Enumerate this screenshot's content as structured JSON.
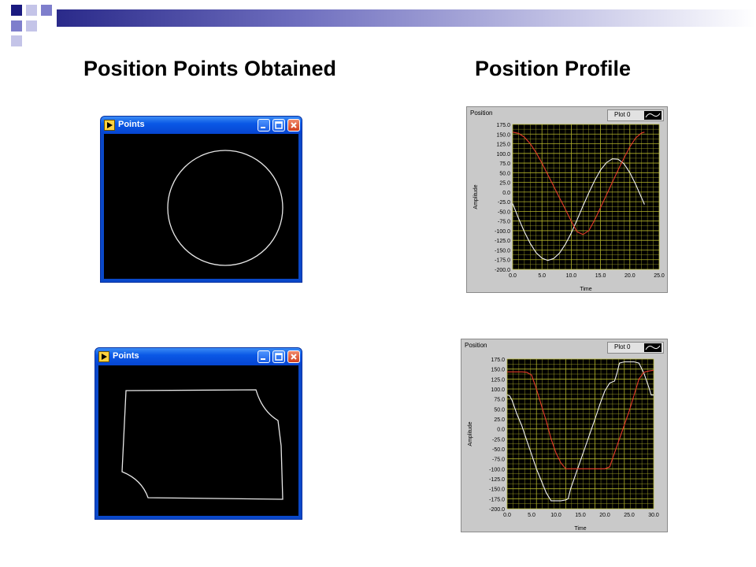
{
  "slide": {
    "heading_left": "Position Points Obtained",
    "heading_right": "Position Profile"
  },
  "windows": [
    {
      "title": "Points",
      "shape": "circle"
    },
    {
      "title": "Points",
      "shape": "square"
    }
  ],
  "colors": {
    "accent_dark": "#1a1a80",
    "accent_mid": "#7e7ecc",
    "accent_light": "#c4c4e8",
    "trace_white": "#f2f2f2",
    "trace_red": "#e63a2a",
    "grid": "#b5b52c"
  },
  "chart_data": [
    {
      "type": "line",
      "title": "Position",
      "xlabel": "Time",
      "ylabel": "Amplitude",
      "legend": "Plot 0",
      "legend_position": "top-right",
      "grid": true,
      "xlim": [
        0,
        25
      ],
      "ylim": [
        -200,
        175
      ],
      "xticks": [
        "0.0",
        "5.0",
        "10.0",
        "15.0",
        "20.0",
        "25.0"
      ],
      "yticks": [
        "175.0",
        "150.0",
        "125.0",
        "100.0",
        "75.0",
        "50.0",
        "25.0",
        "0.0",
        "-25.0",
        "-50.0",
        "-75.0",
        "-100.0",
        "-125.0",
        "-150.0",
        "-175.0",
        "-200.0"
      ],
      "series": [
        {
          "color": "#f2f2f2",
          "x": [
            0,
            1,
            2,
            3,
            4,
            5,
            6,
            7,
            8,
            9,
            10,
            11,
            12,
            13,
            14,
            15,
            16,
            17,
            18,
            19,
            20,
            21,
            22,
            22.5
          ],
          "values": [
            -30,
            -68,
            -103,
            -133,
            -157,
            -171,
            -177,
            -172,
            -158,
            -135,
            -106,
            -72,
            -36,
            -2,
            30,
            57,
            76,
            86,
            85,
            73,
            50,
            20,
            -15,
            -32
          ]
        },
        {
          "color": "#e63a2a",
          "x": [
            0,
            1,
            2,
            3,
            4,
            5,
            6,
            7,
            8,
            9,
            10,
            11,
            12,
            13,
            14,
            15,
            16,
            17,
            18,
            19,
            20,
            21,
            22,
            22.5
          ],
          "values": [
            155,
            152,
            142,
            125,
            102,
            75,
            45,
            15,
            -15,
            -45,
            -75,
            -103,
            -110,
            -100,
            -72,
            -40,
            -8,
            25,
            57,
            88,
            117,
            140,
            153,
            155
          ]
        }
      ]
    },
    {
      "type": "line",
      "title": "Position",
      "xlabel": "Time",
      "ylabel": "Amplitude",
      "legend": "Plot 0",
      "legend_position": "top-right",
      "grid": true,
      "xlim": [
        0,
        30
      ],
      "ylim": [
        -200,
        175
      ],
      "xticks": [
        "0.0",
        "5.0",
        "10.0",
        "15.0",
        "20.0",
        "25.0",
        "30.0"
      ],
      "yticks": [
        "175.0",
        "150.0",
        "125.0",
        "100.0",
        "75.0",
        "50.0",
        "25.0",
        "0.0",
        "-25.0",
        "-50.0",
        "-75.0",
        "-100.0",
        "-125.0",
        "-150.0",
        "-175.0",
        "-200.0"
      ],
      "series": [
        {
          "color": "#f2f2f2",
          "x": [
            0,
            0.5,
            1,
            2,
            3,
            4,
            5,
            6,
            7,
            8,
            9,
            10,
            11,
            12,
            12.5,
            13,
            14,
            15,
            16,
            17,
            18,
            19,
            20,
            21,
            22,
            22.5,
            23,
            24,
            25,
            26,
            27,
            28,
            29,
            29.5,
            30
          ],
          "values": [
            85,
            83,
            72,
            37,
            8,
            -28,
            -64,
            -100,
            -130,
            -160,
            -180,
            -180,
            -180,
            -178,
            -175,
            -150,
            -115,
            -80,
            -45,
            -10,
            25,
            62,
            95,
            115,
            120,
            140,
            165,
            168,
            168,
            168,
            165,
            140,
            105,
            85,
            85
          ]
        },
        {
          "color": "#e63a2a",
          "x": [
            0,
            1,
            2,
            3,
            4,
            5,
            6,
            7,
            8,
            9,
            10,
            11,
            12,
            13,
            14,
            15,
            16,
            17,
            18,
            19,
            20,
            21,
            22,
            23,
            24,
            25,
            26,
            27,
            28,
            29,
            30
          ],
          "values": [
            143,
            143,
            143,
            143,
            142,
            135,
            100,
            60,
            20,
            -25,
            -60,
            -85,
            -100,
            -100,
            -100,
            -100,
            -100,
            -100,
            -100,
            -100,
            -100,
            -95,
            -60,
            -25,
            10,
            45,
            85,
            125,
            142,
            145,
            147
          ]
        }
      ]
    }
  ]
}
